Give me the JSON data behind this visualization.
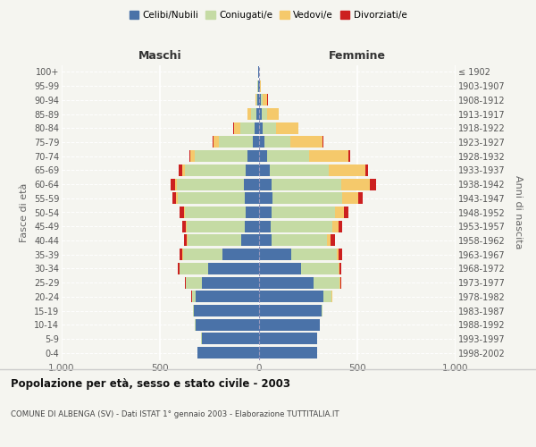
{
  "age_groups": [
    "0-4",
    "5-9",
    "10-14",
    "15-19",
    "20-24",
    "25-29",
    "30-34",
    "35-39",
    "40-44",
    "45-49",
    "50-54",
    "55-59",
    "60-64",
    "65-69",
    "70-74",
    "75-79",
    "80-84",
    "85-89",
    "90-94",
    "95-99",
    "100+"
  ],
  "birth_years": [
    "1998-2002",
    "1993-1997",
    "1988-1992",
    "1983-1987",
    "1978-1982",
    "1973-1977",
    "1968-1972",
    "1963-1967",
    "1958-1962",
    "1953-1957",
    "1948-1952",
    "1943-1947",
    "1938-1942",
    "1933-1937",
    "1928-1932",
    "1923-1927",
    "1918-1922",
    "1913-1917",
    "1908-1912",
    "1903-1907",
    "≤ 1902"
  ],
  "maschi": {
    "celibe": [
      310,
      290,
      320,
      330,
      320,
      290,
      255,
      185,
      90,
      70,
      65,
      70,
      75,
      65,
      55,
      30,
      20,
      10,
      5,
      3,
      2
    ],
    "coniugato": [
      1,
      1,
      2,
      5,
      20,
      80,
      145,
      200,
      270,
      295,
      310,
      340,
      340,
      310,
      270,
      170,
      75,
      30,
      8,
      2,
      1
    ],
    "vedovo": [
      0,
      0,
      0,
      0,
      0,
      0,
      1,
      2,
      3,
      4,
      5,
      8,
      10,
      15,
      20,
      30,
      30,
      15,
      5,
      1,
      0
    ],
    "divorziato": [
      0,
      0,
      0,
      0,
      2,
      5,
      10,
      15,
      15,
      20,
      20,
      20,
      20,
      15,
      5,
      5,
      2,
      1,
      0,
      0,
      0
    ]
  },
  "femmine": {
    "nubile": [
      295,
      295,
      310,
      320,
      330,
      280,
      215,
      165,
      65,
      60,
      65,
      70,
      65,
      55,
      45,
      30,
      20,
      15,
      10,
      5,
      2
    ],
    "coniugata": [
      1,
      1,
      2,
      5,
      40,
      130,
      190,
      230,
      280,
      315,
      325,
      355,
      355,
      300,
      210,
      130,
      70,
      30,
      10,
      3,
      1
    ],
    "vedova": [
      0,
      0,
      0,
      0,
      2,
      5,
      5,
      10,
      20,
      30,
      45,
      80,
      145,
      185,
      200,
      165,
      110,
      55,
      25,
      5,
      0
    ],
    "divorziata": [
      0,
      0,
      0,
      0,
      2,
      5,
      10,
      20,
      25,
      20,
      20,
      25,
      30,
      15,
      10,
      5,
      3,
      2,
      1,
      0,
      0
    ]
  },
  "colors": {
    "celibe": "#4a72a8",
    "coniugato": "#c5dba4",
    "vedovo": "#f5c96b",
    "divorziato": "#cc2020"
  },
  "xlim": 1000,
  "title": "Popolazione per età, sesso e stato civile - 2003",
  "subtitle": "COMUNE DI ALBENGA (SV) - Dati ISTAT 1° gennaio 2003 - Elaborazione TUTTITALIA.IT",
  "ylabel_left": "Fasce di età",
  "ylabel_right": "Anni di nascita",
  "xlabel_left": "Maschi",
  "xlabel_right": "Femmine",
  "legend_labels": [
    "Celibi/Nubili",
    "Coniugati/e",
    "Vedovi/e",
    "Divorziati/e"
  ],
  "bg_color": "#f5f5f0",
  "bar_height": 0.82
}
